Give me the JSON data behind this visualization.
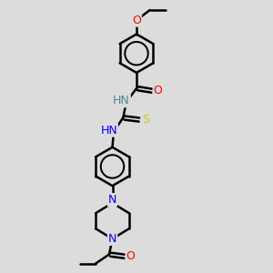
{
  "background_color": "#dcdcdc",
  "line_color": "#000000",
  "bond_width": 1.8,
  "font_size": 8.5,
  "atom_colors": {
    "O": "#ff0000",
    "N": "#0000ff",
    "S": "#cccc00",
    "C": "#000000",
    "H": "#4a8a8a"
  },
  "fig_width": 3.0,
  "fig_height": 3.0,
  "dpi": 100,
  "xlim": [
    0,
    10
  ],
  "ylim": [
    0,
    10
  ]
}
